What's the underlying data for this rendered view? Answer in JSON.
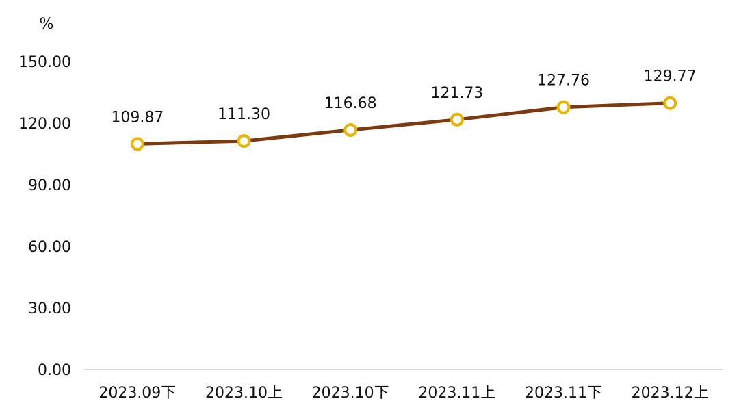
{
  "chart_data": {
    "type": "line",
    "title": "",
    "xlabel": "",
    "ylabel": "%",
    "categories": [
      "2023.09下",
      "2023.10上",
      "2023.10下",
      "2023.11上",
      "2023.11下",
      "2023.12上"
    ],
    "series": [
      {
        "values": [
          109.87,
          111.3,
          116.68,
          121.73,
          127.76,
          129.77
        ],
        "color": "#7B3A10",
        "marker_color": "#E8B400"
      }
    ],
    "data_labels": [
      "109.87",
      "111.30",
      "116.68",
      "121.73",
      "127.76",
      "129.77"
    ],
    "ylim": [
      0,
      150
    ],
    "yticks": [
      0,
      30,
      60,
      90,
      120,
      150
    ],
    "ytick_labels": [
      "0.00",
      "30.00",
      "60.00",
      "90.00",
      "120.00",
      "150.00"
    ],
    "grid": false,
    "legend": "none"
  }
}
